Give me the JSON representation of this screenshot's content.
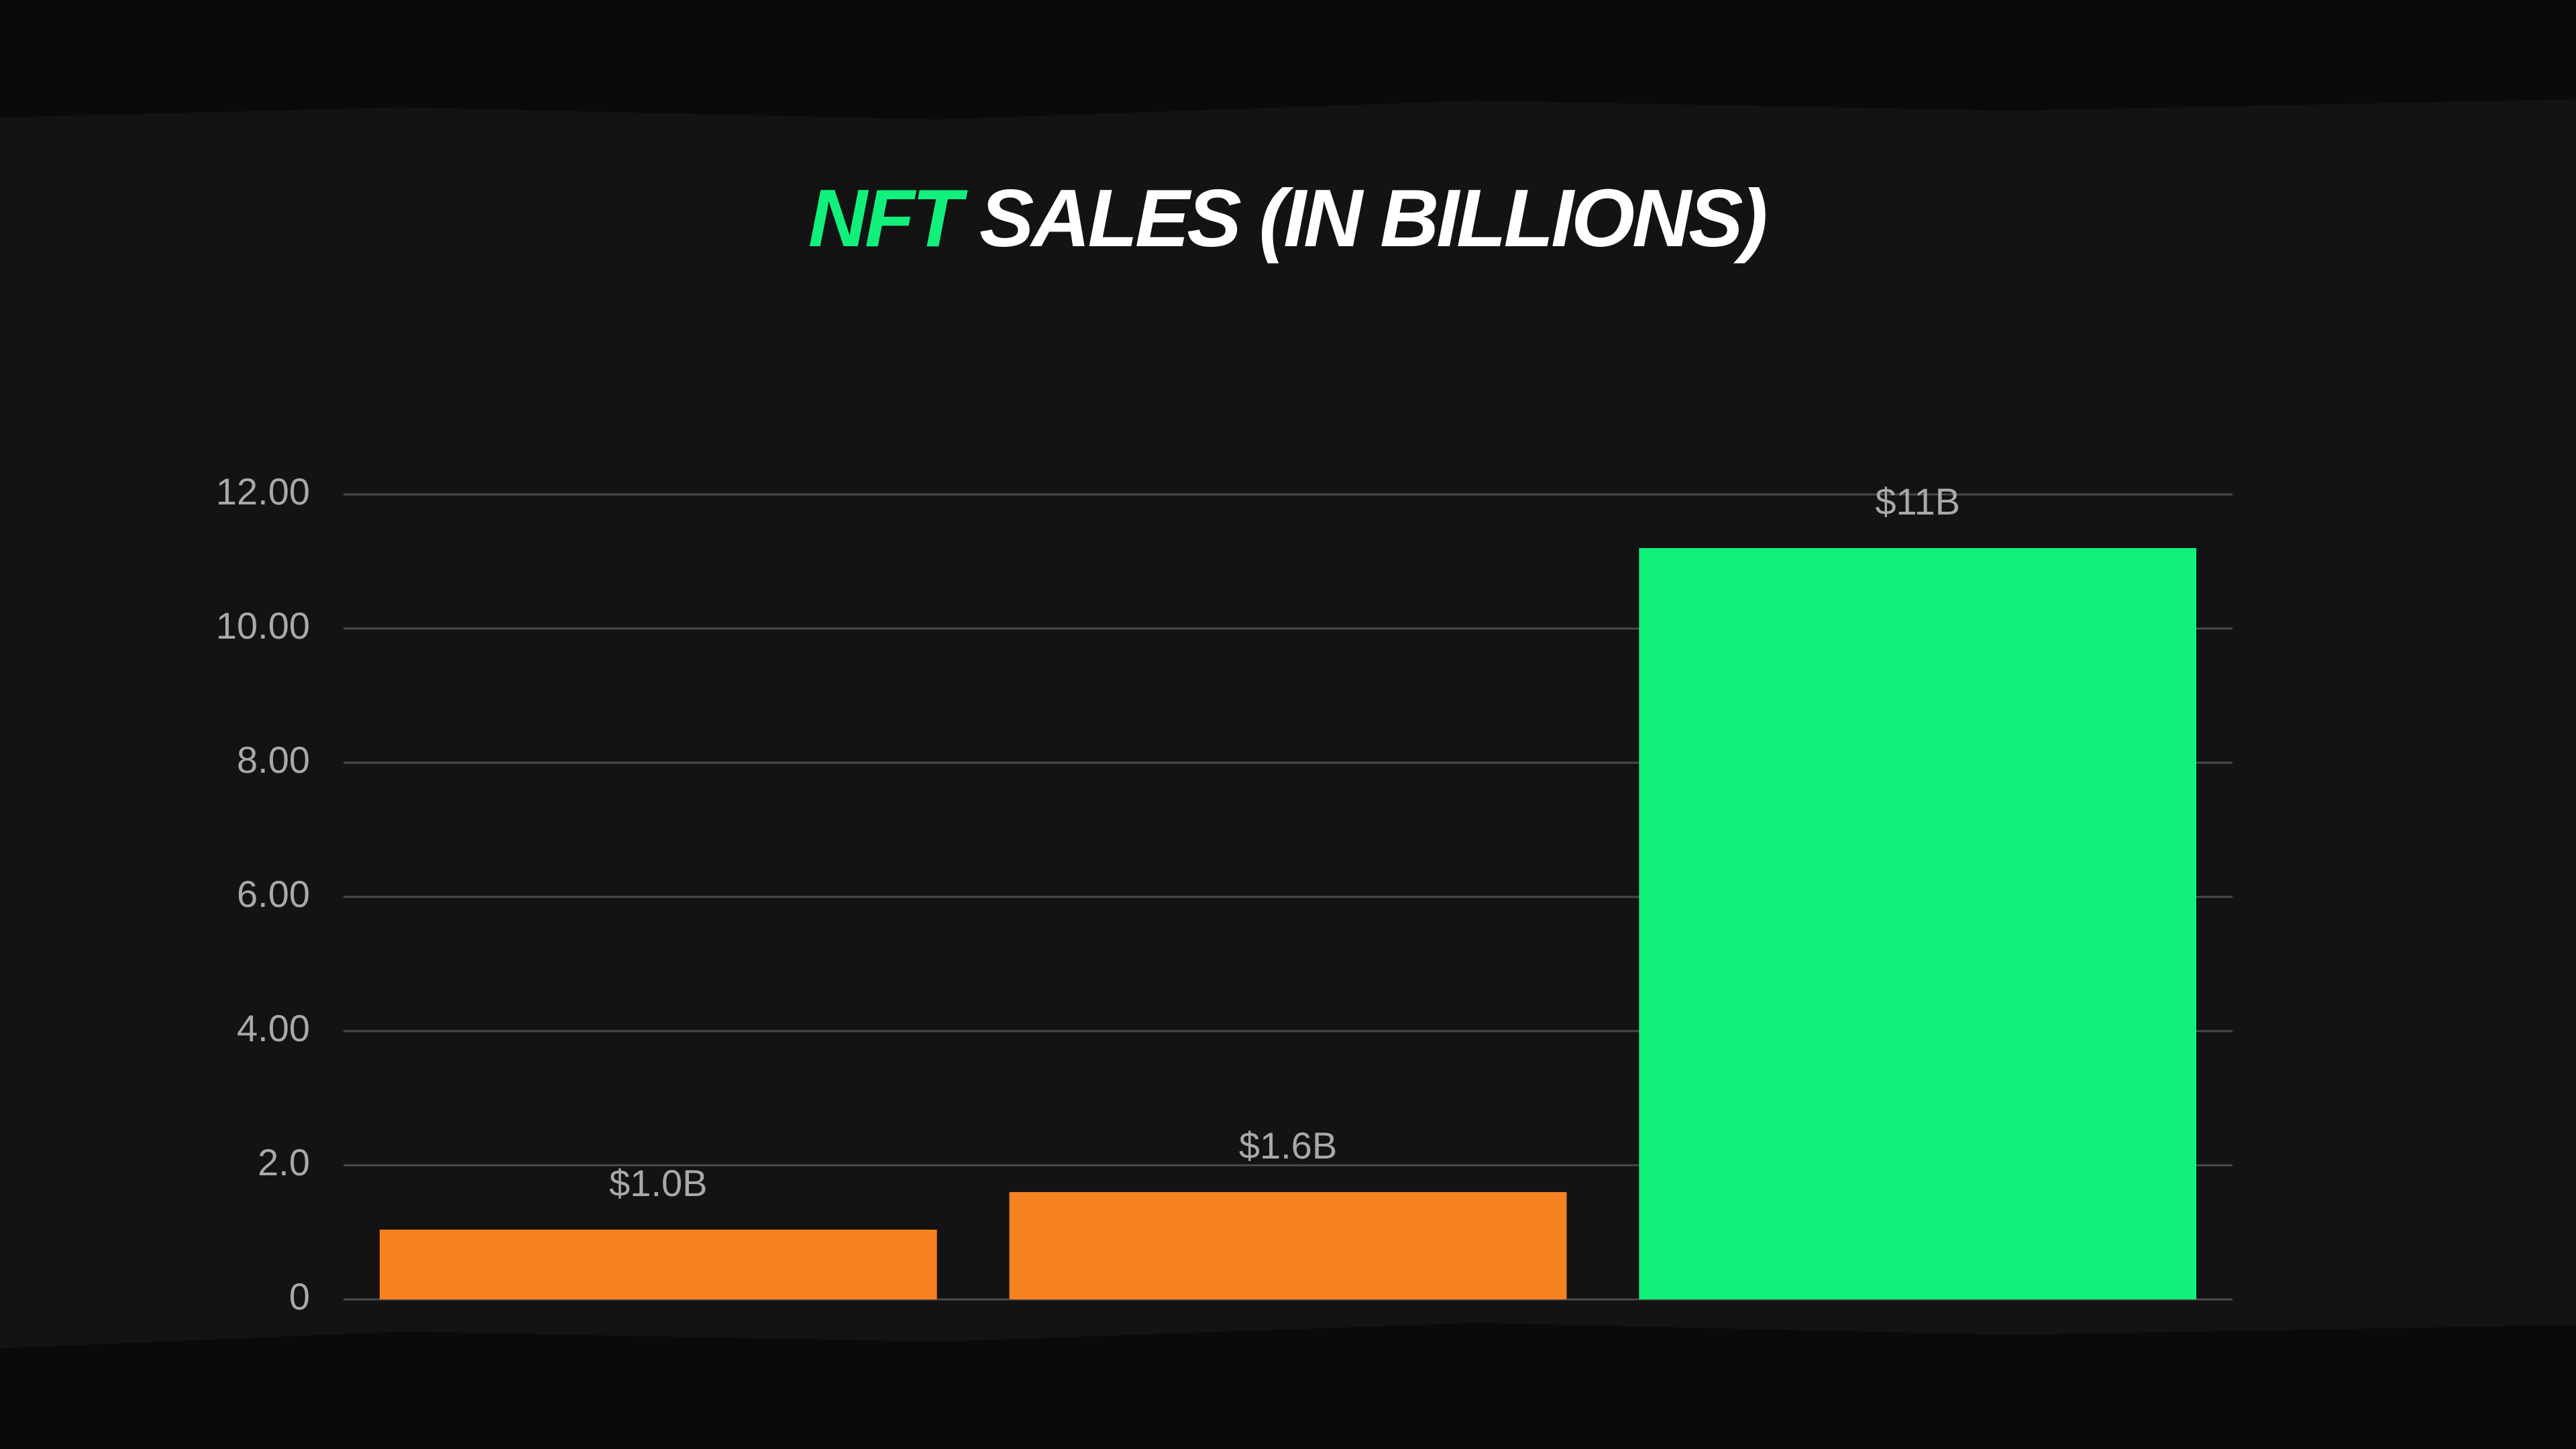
{
  "chart_data": {
    "type": "bar",
    "title_parts": [
      {
        "text": "NFT",
        "color": "#12f07c"
      },
      {
        "text": "SALES (IN BILLIONS)",
        "color": "#ffffff"
      }
    ],
    "categories": [
      null,
      null,
      null
    ],
    "values": [
      1.04,
      1.6,
      11.2
    ],
    "value_labels": [
      "$1.0B",
      "$1.6B",
      "$11B"
    ],
    "colors": [
      "#f5821f",
      "#f5821f",
      "#12f07c"
    ],
    "ylim": [
      0,
      12
    ],
    "yticks": [
      0,
      {
        "value": 2,
        "label": "2.0"
      },
      {
        "value": 4,
        "label": "4.00"
      },
      {
        "value": 6,
        "label": "6.00"
      },
      {
        "value": 8,
        "label": "8.00"
      },
      {
        "value": 10,
        "label": "10.00"
      },
      {
        "value": 12,
        "label": "12.00"
      }
    ],
    "grid": true
  }
}
